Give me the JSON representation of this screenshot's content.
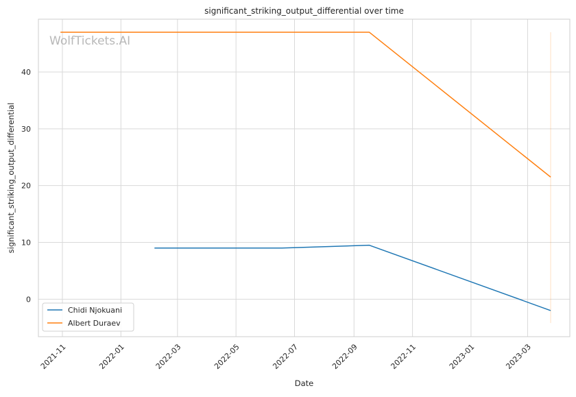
{
  "chart_data": {
    "type": "line",
    "title": "significant_striking_output_differential over time",
    "xlabel": "Date",
    "ylabel": "significant_striking_output_differential",
    "watermark": "WolfTickets.AI",
    "x_is_date": true,
    "xlim": [
      "2021-10-07",
      "2023-04-14"
    ],
    "ylim": [
      -6.6,
      49.3
    ],
    "x_ticks": [
      "2021-11-01",
      "2022-01-01",
      "2022-03-01",
      "2022-05-01",
      "2022-07-01",
      "2022-09-01",
      "2022-11-01",
      "2023-01-01",
      "2023-03-01"
    ],
    "x_tick_labels": [
      "2021-11",
      "2022-01",
      "2022-03",
      "2022-05",
      "2022-07",
      "2022-09",
      "2022-11",
      "2023-01",
      "2023-03"
    ],
    "y_ticks": [
      0,
      10,
      20,
      30,
      40
    ],
    "y_tick_labels": [
      "0",
      "10",
      "20",
      "30",
      "40"
    ],
    "grid": true,
    "legend_position": "lower-left",
    "series": [
      {
        "name": "Chidi Njokuani",
        "color": "#1f77b4",
        "x": [
          "2022-02-05",
          "2022-06-18",
          "2022-09-17",
          "2023-03-25"
        ],
        "y": [
          9.0,
          9.0,
          9.5,
          -2.0
        ]
      },
      {
        "name": "Albert Duraev",
        "color": "#ff7f0e",
        "x": [
          "2021-10-30",
          "2022-09-17",
          "2023-03-25"
        ],
        "y": [
          47.0,
          47.0,
          21.5
        ]
      }
    ],
    "annotations": [
      {
        "type": "vline",
        "x": "2023-03-25",
        "y_range": [
          -4.2,
          47.0
        ],
        "color": "#ff7f0e",
        "opacity": 0.25
      }
    ]
  }
}
